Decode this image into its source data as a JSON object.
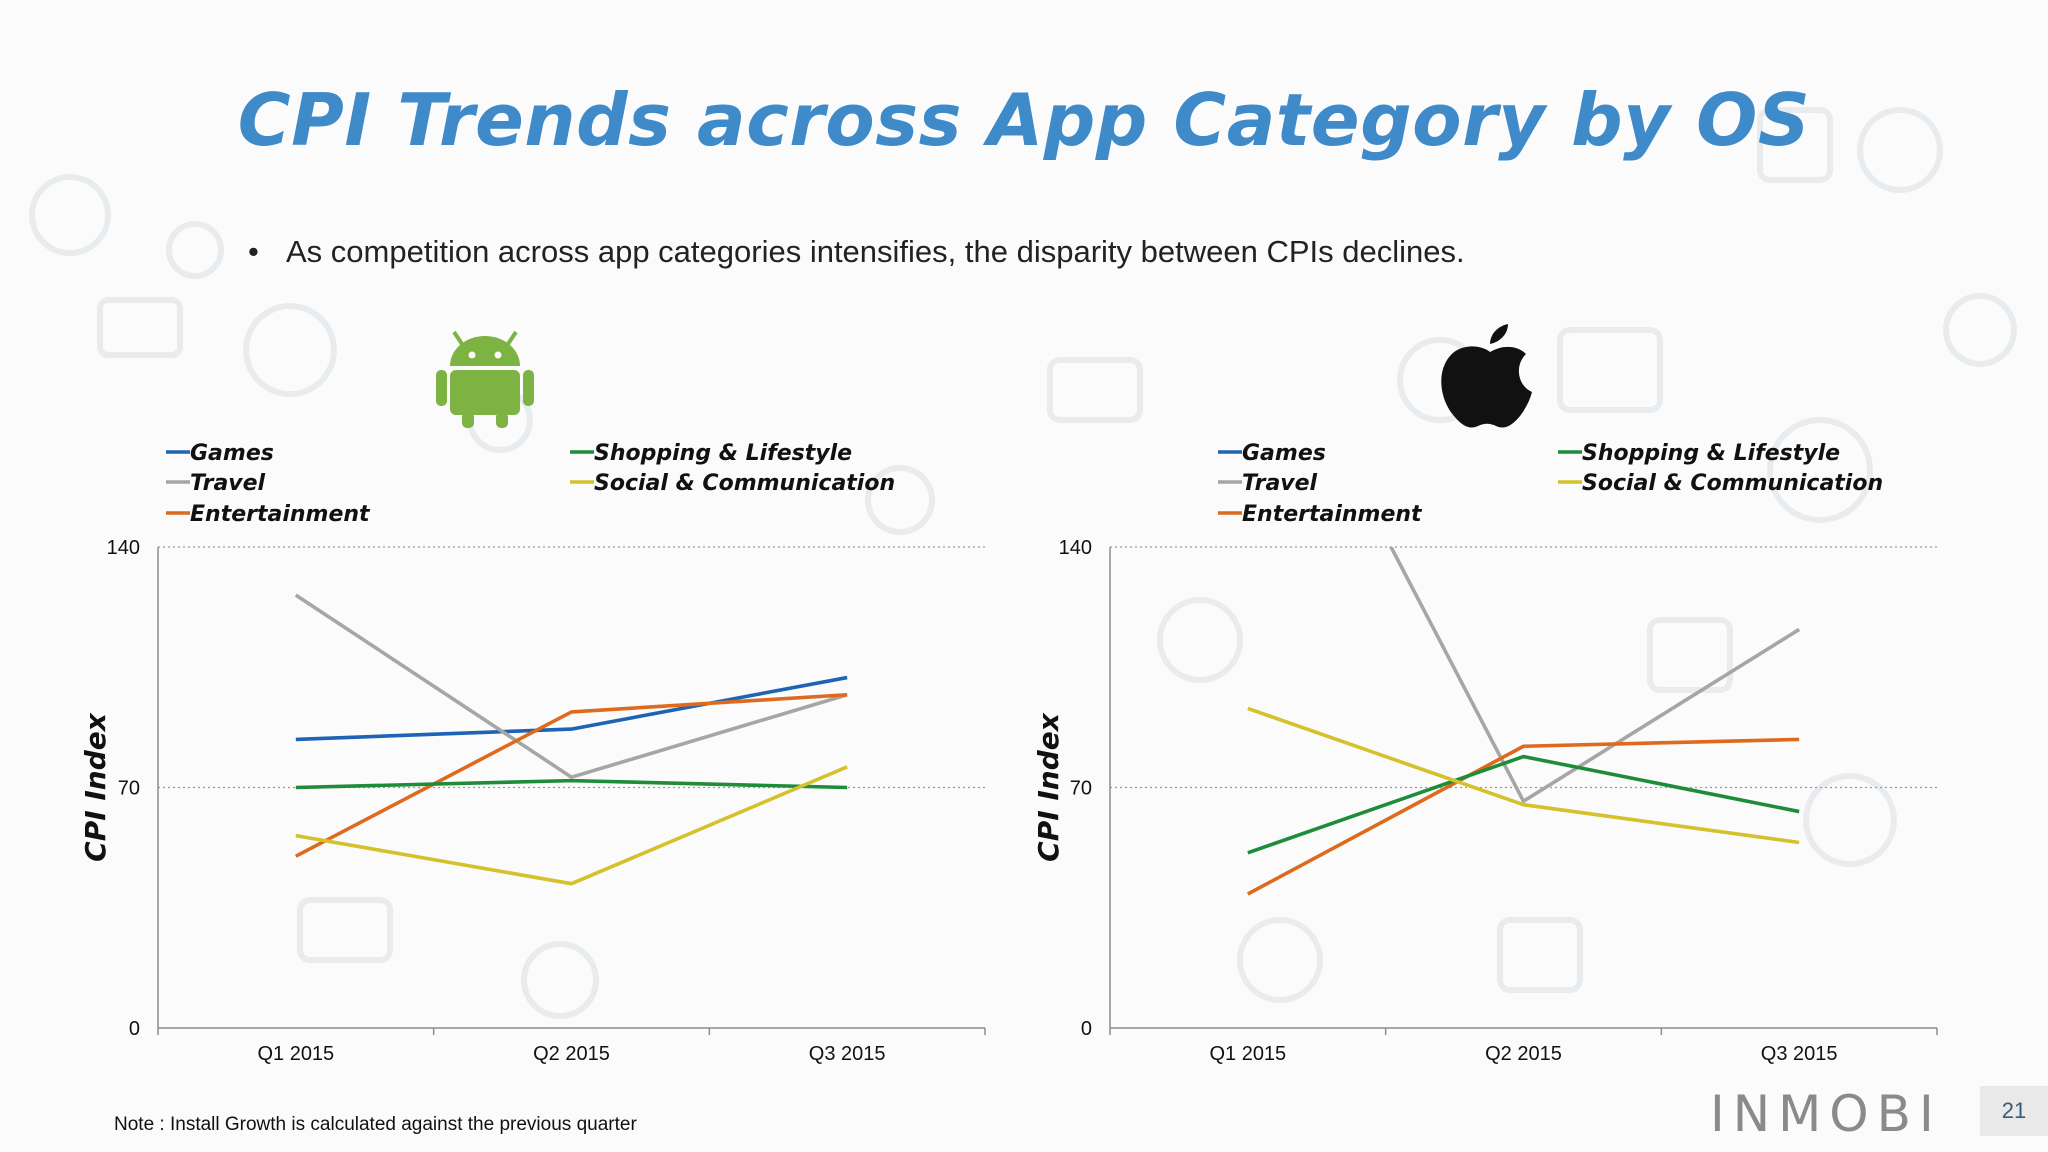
{
  "slide": {
    "title": "CPI Trends across App Category by OS",
    "bullet": "As competition across app categories intensifies, the disparity between CPIs declines.",
    "note": "Note : Install Growth is calculated against the previous quarter",
    "brand": "INMOBI",
    "page_number": "21",
    "colors": {
      "title": "#3f8ac9",
      "android": "#7cb342",
      "apple": "#111111"
    }
  },
  "chart_data": [
    {
      "type": "line",
      "platform": "Android",
      "icon": "android-icon",
      "categories": [
        "Q1 2015",
        "Q2 2015",
        "Q3 2015"
      ],
      "ylabel": "CPI Index",
      "ylim": [
        0,
        140
      ],
      "yticks": [
        "0",
        "70",
        "140"
      ],
      "grid": "dotted horizontal at 70 and 140",
      "legend_position": "top",
      "series": [
        {
          "name": "Games",
          "color": "#1f63b5",
          "values": [
            84,
            87,
            102
          ]
        },
        {
          "name": "Travel",
          "color": "#a6a6a6",
          "values": [
            126,
            73,
            97
          ]
        },
        {
          "name": "Entertainment",
          "color": "#de6a1d",
          "values": [
            50,
            92,
            97
          ]
        },
        {
          "name": "Shopping & Lifestyle",
          "color": "#1e8c3a",
          "values": [
            70,
            72,
            70
          ]
        },
        {
          "name": "Social & Communication",
          "color": "#d4c12b",
          "values": [
            56,
            42,
            76
          ]
        }
      ]
    },
    {
      "type": "line",
      "platform": "iOS",
      "icon": "apple-icon",
      "categories": [
        "Q1 2015",
        "Q2 2015",
        "Q3 2015"
      ],
      "ylabel": "CPI Index",
      "ylim": [
        0,
        140
      ],
      "yticks": [
        "0",
        "70",
        "140"
      ],
      "grid": "dotted horizontal at 70 and 140",
      "legend_position": "top",
      "series": [
        {
          "name": "Games",
          "color": "#1f63b5",
          "values": [
            null,
            null,
            null
          ]
        },
        {
          "name": "Travel",
          "color": "#a6a6a6",
          "values": [
            220,
            66,
            116
          ]
        },
        {
          "name": "Entertainment",
          "color": "#de6a1d",
          "values": [
            39,
            82,
            84
          ]
        },
        {
          "name": "Shopping & Lifestyle",
          "color": "#1e8c3a",
          "values": [
            51,
            79,
            63
          ]
        },
        {
          "name": "Social & Communication",
          "color": "#d4c12b",
          "values": [
            93,
            65,
            54
          ]
        }
      ]
    }
  ]
}
